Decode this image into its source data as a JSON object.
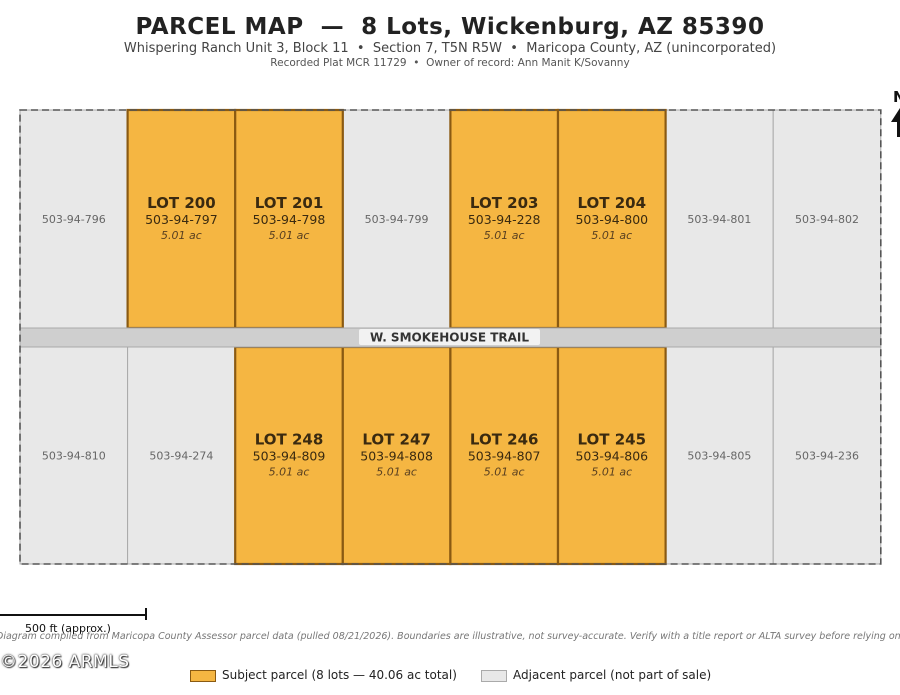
{
  "header": {
    "title": "PARCEL MAP  —  8 Lots, Wickenburg, AZ 85390",
    "subtitle": "Whispering Ranch Unit 3, Block 11  •  Section 7, T5N R5W  •  Maricopa County, AZ (unincorporated)",
    "recording": "Recorded Plat MCR 11729  •  Owner of record: Ann Manit K/Sovanny"
  },
  "north_label": "N",
  "road": {
    "name": "W.  SMOKEHOUSE  TRAIL"
  },
  "colors": {
    "subject_fill": "#f5b642",
    "subject_border": "#8a5a12",
    "adjacent_fill": "#e8e8e8",
    "adjacent_border": "#aaaaaa",
    "road_fill": "#cfcfcf"
  },
  "parcels": {
    "north_row": [
      {
        "apn": "503-94-796",
        "subject": false
      },
      {
        "lot": "LOT 200",
        "apn": "503-94-797",
        "acres": "5.01 ac",
        "subject": true
      },
      {
        "lot": "LOT 201",
        "apn": "503-94-798",
        "acres": "5.01 ac",
        "subject": true
      },
      {
        "apn": "503-94-799",
        "subject": false
      },
      {
        "lot": "LOT 203",
        "apn": "503-94-228",
        "acres": "5.01 ac",
        "subject": true
      },
      {
        "lot": "LOT 204",
        "apn": "503-94-800",
        "acres": "5.01 ac",
        "subject": true
      },
      {
        "apn": "503-94-801",
        "subject": false
      },
      {
        "apn": "503-94-802",
        "subject": false
      }
    ],
    "south_row": [
      {
        "apn": "503-94-810",
        "subject": false
      },
      {
        "apn": "503-94-274",
        "subject": false
      },
      {
        "lot": "LOT 248",
        "apn": "503-94-809",
        "acres": "5.01 ac",
        "subject": true
      },
      {
        "lot": "LOT 247",
        "apn": "503-94-808",
        "acres": "5.01 ac",
        "subject": true
      },
      {
        "lot": "LOT 246",
        "apn": "503-94-807",
        "acres": "5.01 ac",
        "subject": true
      },
      {
        "lot": "LOT 245",
        "apn": "503-94-806",
        "acres": "5.01 ac",
        "subject": true
      },
      {
        "apn": "503-94-805",
        "subject": false
      },
      {
        "apn": "503-94-236",
        "subject": false
      }
    ]
  },
  "scale_bar": {
    "label": "500 ft (approx.)"
  },
  "disclaimer": "Diagram compiled from Maricopa County Assessor parcel data (pulled 08/21/2026). Boundaries are illustrative, not survey-accurate. Verify with a title report or ALTA survey before relying on",
  "watermark": "©2026 ARMLS",
  "legend": {
    "subject": "Subject parcel (8 lots — 40.06 ac total)",
    "adjacent": "Adjacent parcel (not part of sale)"
  }
}
